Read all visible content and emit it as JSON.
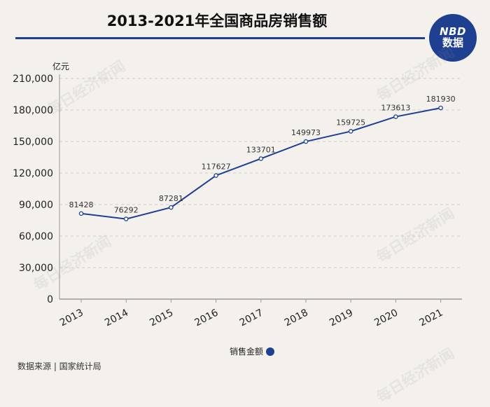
{
  "title": "2013-2021年全国商品房销售额",
  "logo": {
    "line1": "NBD",
    "line2": "数据"
  },
  "watermark_text": "每日经济新闻",
  "source": "数据来源 | 国家统计局",
  "colors": {
    "line": "#1f3f91",
    "background": "#f4f1ec"
  },
  "chart_data": {
    "type": "line",
    "title": "2013-2021年全国商品房销售额",
    "ylabel": "亿元",
    "xlabel": "",
    "categories": [
      "2013",
      "2014",
      "2015",
      "2016",
      "2017",
      "2018",
      "2019",
      "2020",
      "2021"
    ],
    "series": [
      {
        "name": "销售金额",
        "values": [
          81428,
          76292,
          87281,
          117627,
          133701,
          149973,
          159725,
          173613,
          181930
        ],
        "labels": [
          "81428",
          "76292",
          "87281",
          "117627",
          "133701",
          "149973",
          "159725",
          "173613",
          "181930"
        ]
      }
    ],
    "ylim": [
      0,
      210000
    ],
    "yticks": [
      0,
      30000,
      60000,
      90000,
      120000,
      150000,
      180000,
      210000
    ],
    "ytick_labels": [
      "0",
      "30,000",
      "60,000",
      "90,000",
      "120,000",
      "150,000",
      "180,000",
      "210,000"
    ],
    "grid": true,
    "legend_position": "bottom"
  }
}
